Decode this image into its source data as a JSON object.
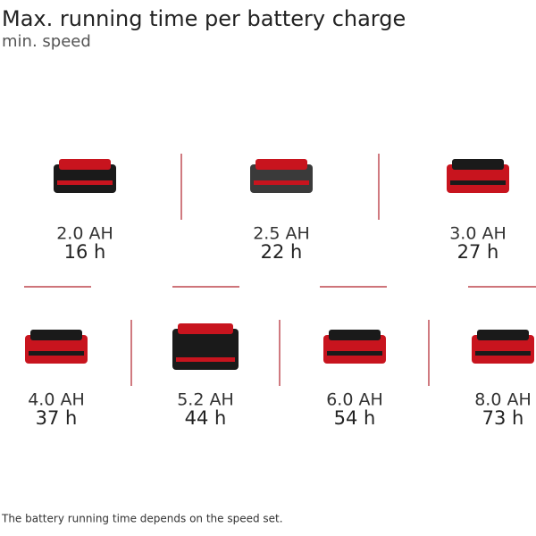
{
  "header": {
    "title": "Max. running time per battery charge",
    "subtitle": "min. speed"
  },
  "batteries": [
    {
      "capacity": "2.0 AH",
      "runtime": "16 h"
    },
    {
      "capacity": "2.5 AH",
      "runtime": "22 h"
    },
    {
      "capacity": "3.0 AH",
      "runtime": "27 h"
    },
    {
      "capacity": "4.0 AH",
      "runtime": "37 h"
    },
    {
      "capacity": "5.2 AH",
      "runtime": "44 h"
    },
    {
      "capacity": "6.0 AH",
      "runtime": "54 h"
    },
    {
      "capacity": "8.0 AH",
      "runtime": "73 h"
    }
  ],
  "footnote": "The battery running time depends on the speed set."
}
